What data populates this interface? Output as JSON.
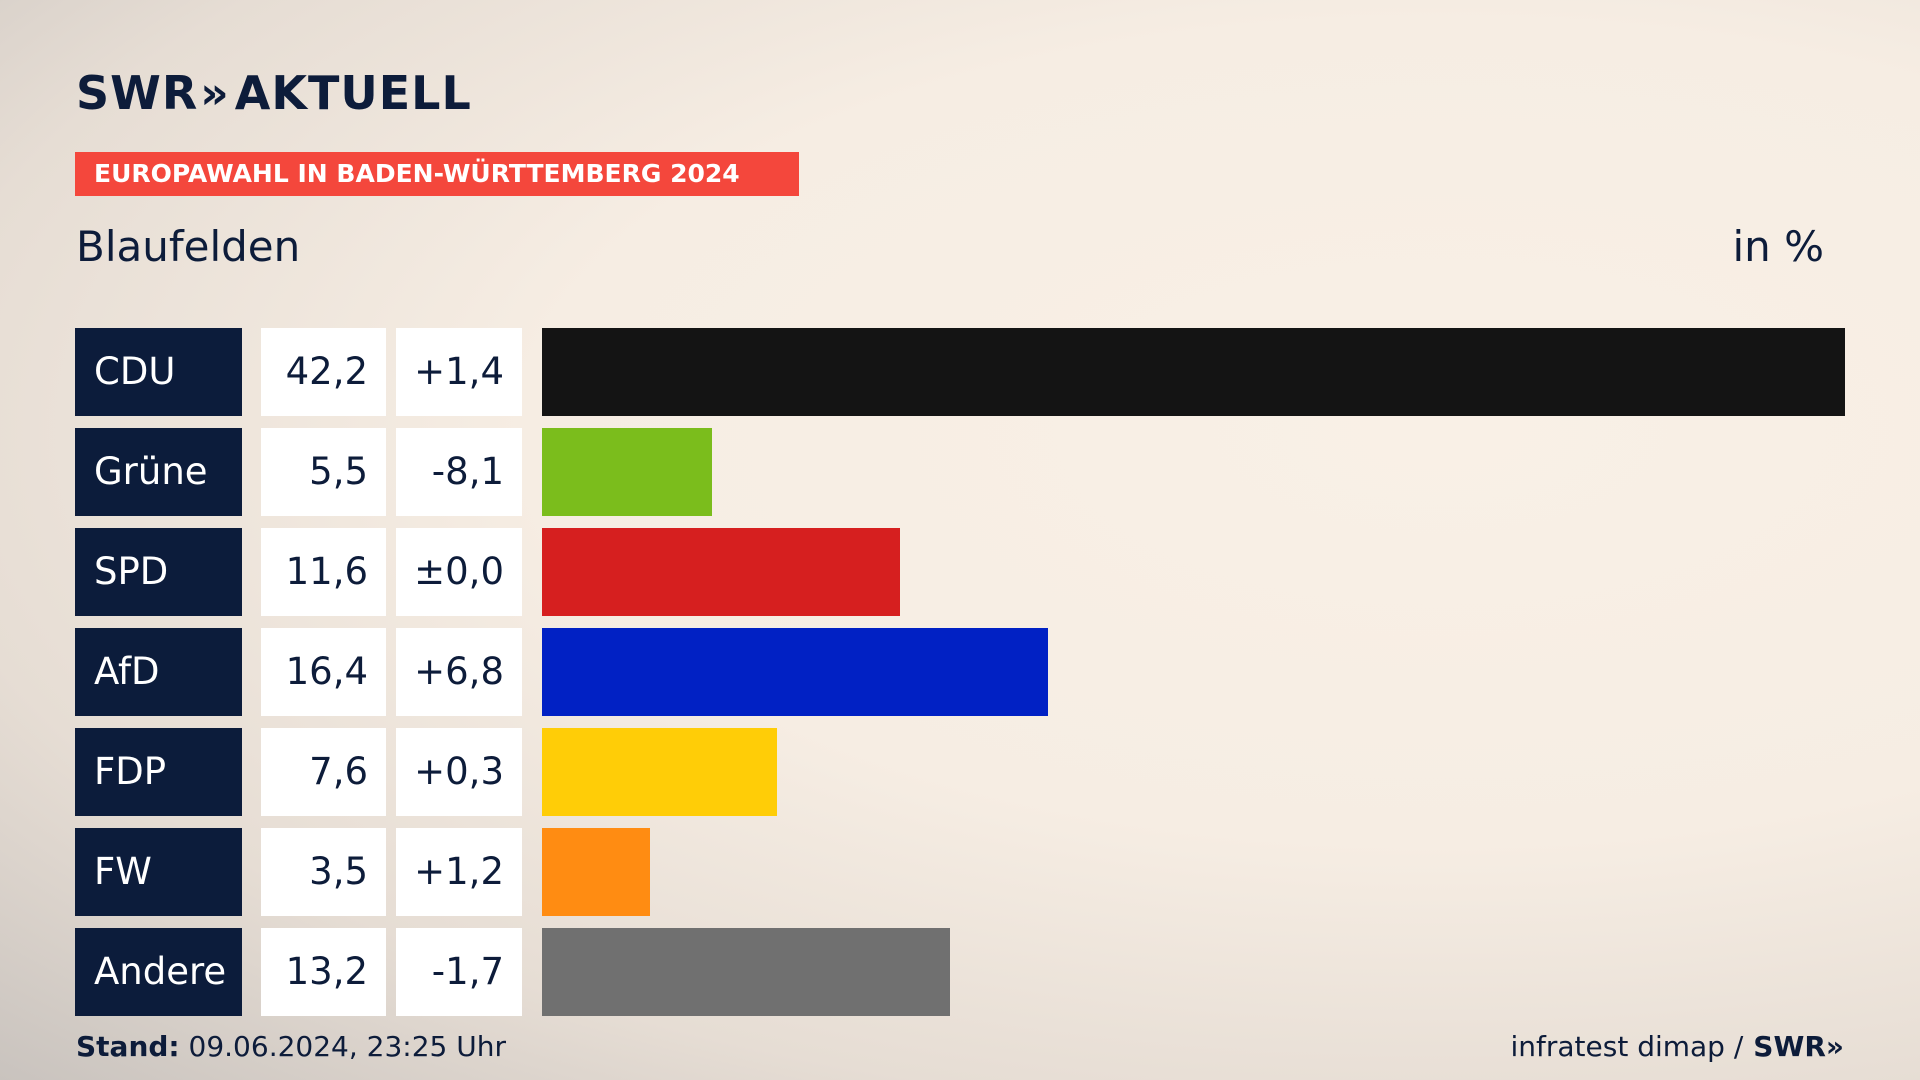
{
  "header": {
    "logo_text": "SWR",
    "logo_chevrons": "»",
    "logo_suffix": "AKTUELL",
    "tag": "EUROPAWAHL IN BADEN-WÜRTTEMBERG 2024",
    "subtitle": "Blaufelden",
    "unit": "in %"
  },
  "footer": {
    "stand_label": "Stand:",
    "stand_value": "09.06.2024, 23:25 Uhr",
    "source": "infratest dimap /",
    "source_logo": "SWR»"
  },
  "rows": [
    {
      "party": "CDU",
      "value": "42,2",
      "diff": "+1,4"
    },
    {
      "party": "Grüne",
      "value": "5,5",
      "diff": "-8,1"
    },
    {
      "party": "SPD",
      "value": "11,6",
      "diff": "±0,0"
    },
    {
      "party": "AfD",
      "value": "16,4",
      "diff": "+6,8"
    },
    {
      "party": "FDP",
      "value": "7,6",
      "diff": "+0,3"
    },
    {
      "party": "FW",
      "value": "3,5",
      "diff": "+1,2"
    },
    {
      "party": "Andere",
      "value": "13,2",
      "diff": "-1,7"
    }
  ],
  "chart_data": {
    "type": "bar",
    "orientation": "horizontal",
    "categories": [
      "CDU",
      "Grüne",
      "SPD",
      "AfD",
      "FDP",
      "FW",
      "Andere"
    ],
    "values": [
      42.2,
      5.5,
      11.6,
      16.4,
      7.6,
      3.5,
      13.2
    ],
    "changes": [
      1.4,
      -8.1,
      0.0,
      6.8,
      0.3,
      1.2,
      -1.7
    ],
    "colors": [
      "#141414",
      "#7bbd1c",
      "#d61f1f",
      "#0121c4",
      "#ffcd07",
      "#ff8c12",
      "#707070"
    ],
    "xlim": [
      0,
      42.2
    ]
  }
}
